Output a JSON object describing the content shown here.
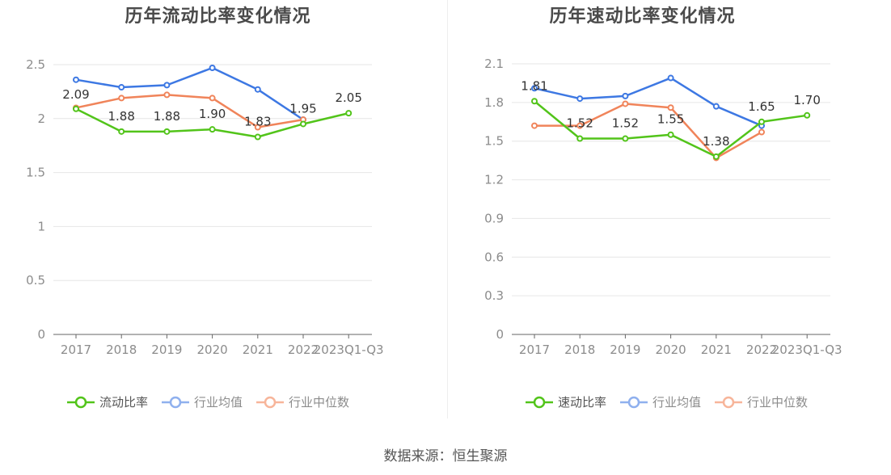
{
  "source": "数据来源：恒生聚源",
  "legend_colors": {
    "company": "#52c41a",
    "industry_avg": "#3d78e3",
    "industry_median": "#f0845a"
  },
  "chart_data": [
    {
      "type": "line",
      "title": "历年流动比率变化情况",
      "categories": [
        "2017",
        "2018",
        "2019",
        "2020",
        "2021",
        "2022",
        "2023Q1-Q3"
      ],
      "ylim": [
        0,
        2.5
      ],
      "yticks": [
        "0",
        "0.5",
        "1",
        "1.5",
        "2",
        "2.5"
      ],
      "ytick_values": [
        0,
        0.5,
        1,
        1.5,
        2,
        2.5
      ],
      "series": [
        {
          "name": "流动比率",
          "key": "company",
          "values": [
            2.09,
            1.88,
            1.88,
            1.9,
            1.83,
            1.95,
            2.05
          ],
          "labels": [
            "2.09",
            "1.88",
            "1.88",
            "1.90",
            "1.83",
            "1.95",
            "2.05"
          ]
        },
        {
          "name": "行业均值",
          "key": "industry_avg",
          "values": [
            2.36,
            2.29,
            2.31,
            2.47,
            2.27,
            1.99,
            null
          ]
        },
        {
          "name": "行业中位数",
          "key": "industry_median",
          "values": [
            2.1,
            2.19,
            2.22,
            2.19,
            1.92,
            1.99,
            null
          ]
        }
      ]
    },
    {
      "type": "line",
      "title": "历年速动比率变化情况",
      "categories": [
        "2017",
        "2018",
        "2019",
        "2020",
        "2021",
        "2022",
        "2023Q1-Q3"
      ],
      "ylim": [
        0,
        2.1
      ],
      "yticks": [
        "0",
        "0.3",
        "0.6",
        "0.9",
        "1.2",
        "1.5",
        "1.8",
        "2.1"
      ],
      "ytick_values": [
        0,
        0.3,
        0.6,
        0.9,
        1.2,
        1.5,
        1.8,
        2.1
      ],
      "series": [
        {
          "name": "速动比率",
          "key": "company",
          "values": [
            1.81,
            1.52,
            1.52,
            1.55,
            1.38,
            1.65,
            1.7
          ],
          "labels": [
            "1.81",
            "1.52",
            "1.52",
            "1.55",
            "1.38",
            "1.65",
            "1.70"
          ]
        },
        {
          "name": "行业均值",
          "key": "industry_avg",
          "values": [
            1.91,
            1.83,
            1.85,
            1.99,
            1.77,
            1.62,
            null
          ]
        },
        {
          "name": "行业中位数",
          "key": "industry_median",
          "values": [
            1.62,
            1.62,
            1.79,
            1.76,
            1.37,
            1.57,
            null
          ]
        }
      ]
    }
  ]
}
